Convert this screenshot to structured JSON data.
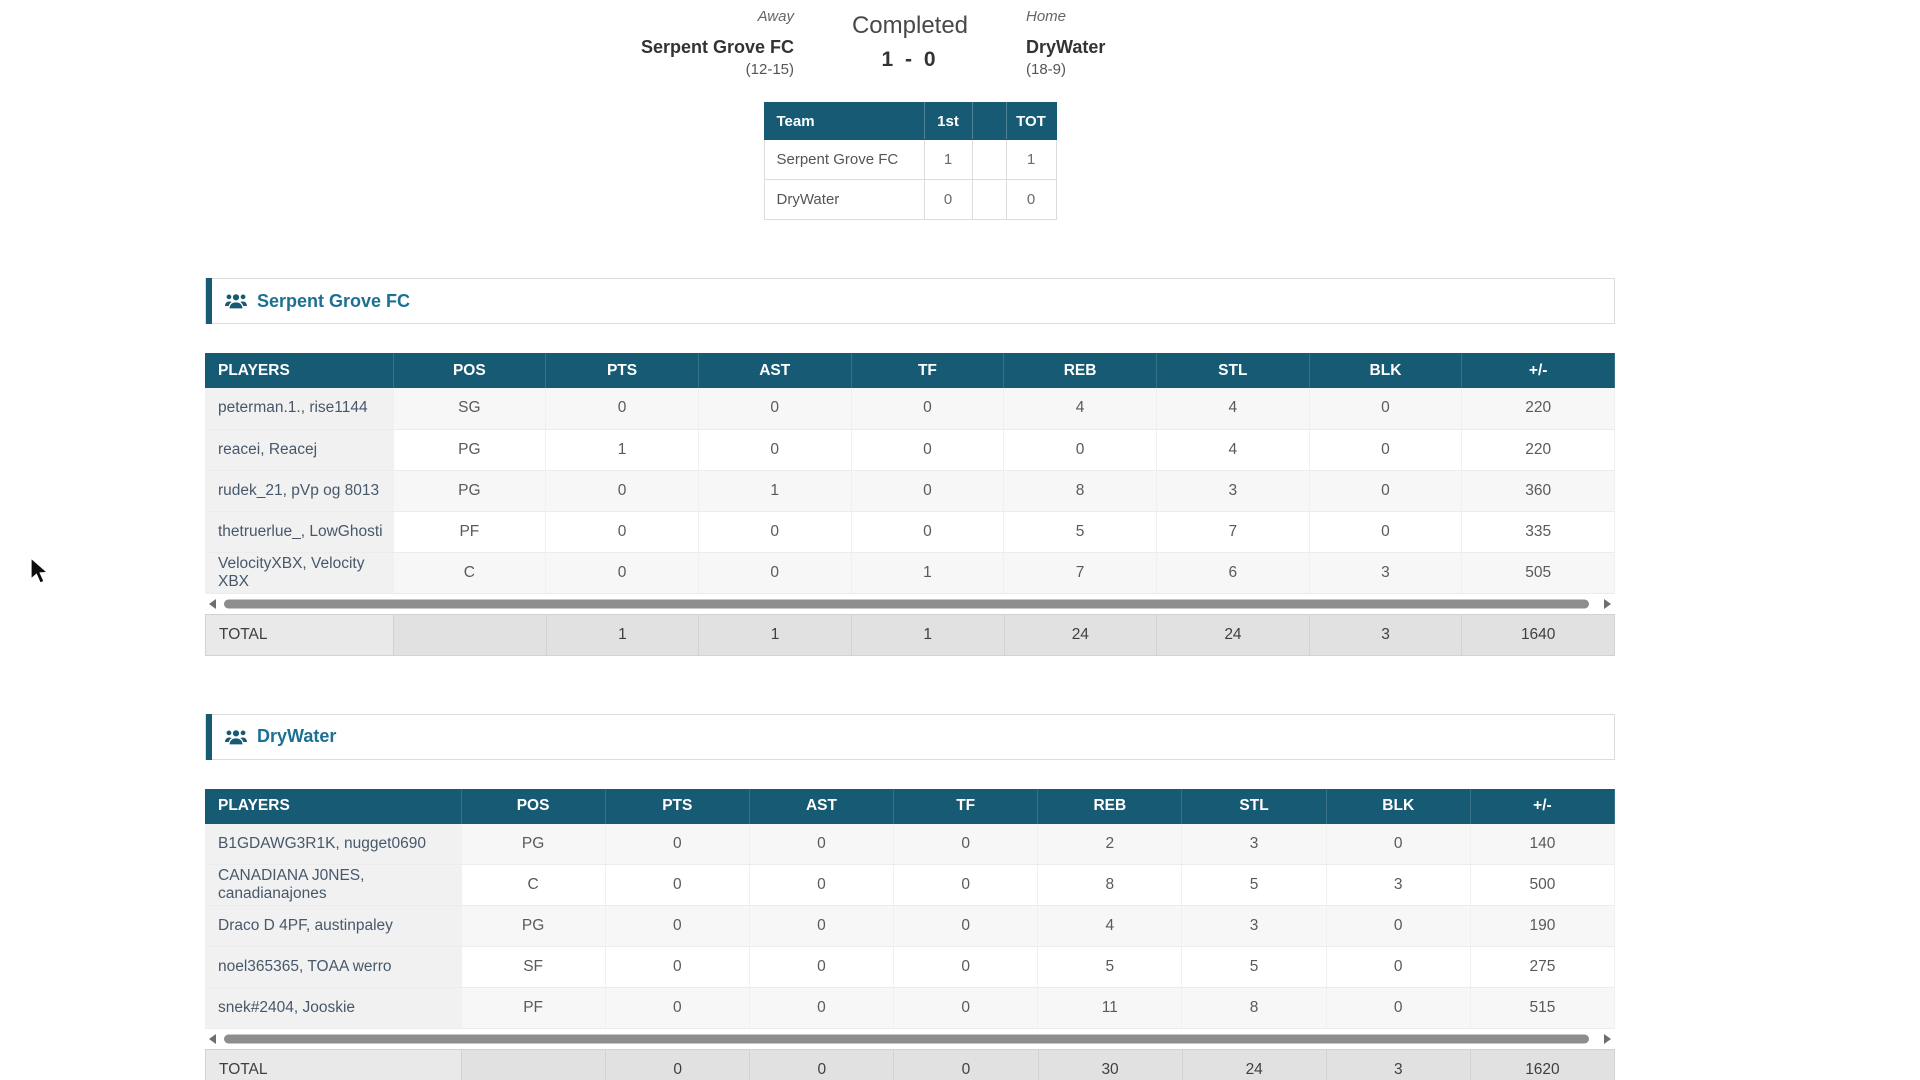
{
  "colors": {
    "teal_header": "#175a73",
    "section_title": "#1d7092"
  },
  "match": {
    "status": "Completed",
    "score": "1 - 0",
    "away": {
      "label": "Away",
      "name": "Serpent Grove FC",
      "record": "(12-15)"
    },
    "home": {
      "label": "Home",
      "name": "DryWater",
      "record": "(18-9)"
    }
  },
  "score_table": {
    "headers": [
      "Team",
      "1st",
      "",
      "TOT"
    ],
    "rows": [
      [
        "Serpent Grove FC",
        "1",
        "",
        "1"
      ],
      [
        "DryWater",
        "0",
        "",
        "0"
      ]
    ]
  },
  "teams": [
    {
      "title": "Serpent Grove FC",
      "headers": [
        "PLAYERS",
        "POS",
        "PTS",
        "AST",
        "TF",
        "REB",
        "STL",
        "BLK",
        "+/-"
      ],
      "rows": [
        [
          "peterman.1., rise1144",
          "SG",
          "0",
          "0",
          "0",
          "4",
          "4",
          "0",
          "220"
        ],
        [
          "reacei, Reacej",
          "PG",
          "1",
          "0",
          "0",
          "0",
          "4",
          "0",
          "220"
        ],
        [
          "rudek_21, pVp og 8013",
          "PG",
          "0",
          "1",
          "0",
          "8",
          "3",
          "0",
          "360"
        ],
        [
          "thetruerlue_, LowGhosti",
          "PF",
          "0",
          "0",
          "0",
          "5",
          "7",
          "0",
          "335"
        ],
        [
          "VelocityXBX, Velocity XBX",
          "C",
          "0",
          "0",
          "1",
          "7",
          "6",
          "3",
          "505"
        ]
      ],
      "total": [
        "TOTAL",
        "",
        "1",
        "1",
        "1",
        "24",
        "24",
        "3",
        "1640"
      ]
    },
    {
      "title": "DryWater",
      "headers": [
        "PLAYERS",
        "POS",
        "PTS",
        "AST",
        "TF",
        "REB",
        "STL",
        "BLK",
        "+/-"
      ],
      "rows": [
        [
          "B1GDAWG3R1K, nugget0690",
          "PG",
          "0",
          "0",
          "0",
          "2",
          "3",
          "0",
          "140"
        ],
        [
          "CANADIANA J0NES, canadianajones",
          "C",
          "0",
          "0",
          "0",
          "8",
          "5",
          "3",
          "500"
        ],
        [
          "Draco D 4PF, austinpaley",
          "PG",
          "0",
          "0",
          "0",
          "4",
          "3",
          "0",
          "190"
        ],
        [
          "noel365365, TOAA werro",
          "SF",
          "0",
          "0",
          "0",
          "5",
          "5",
          "0",
          "275"
        ],
        [
          "snek#2404, Jooskie",
          "PF",
          "0",
          "0",
          "0",
          "11",
          "8",
          "0",
          "515"
        ]
      ],
      "total": [
        "TOTAL",
        "",
        "0",
        "0",
        "0",
        "30",
        "24",
        "3",
        "1620"
      ]
    }
  ]
}
